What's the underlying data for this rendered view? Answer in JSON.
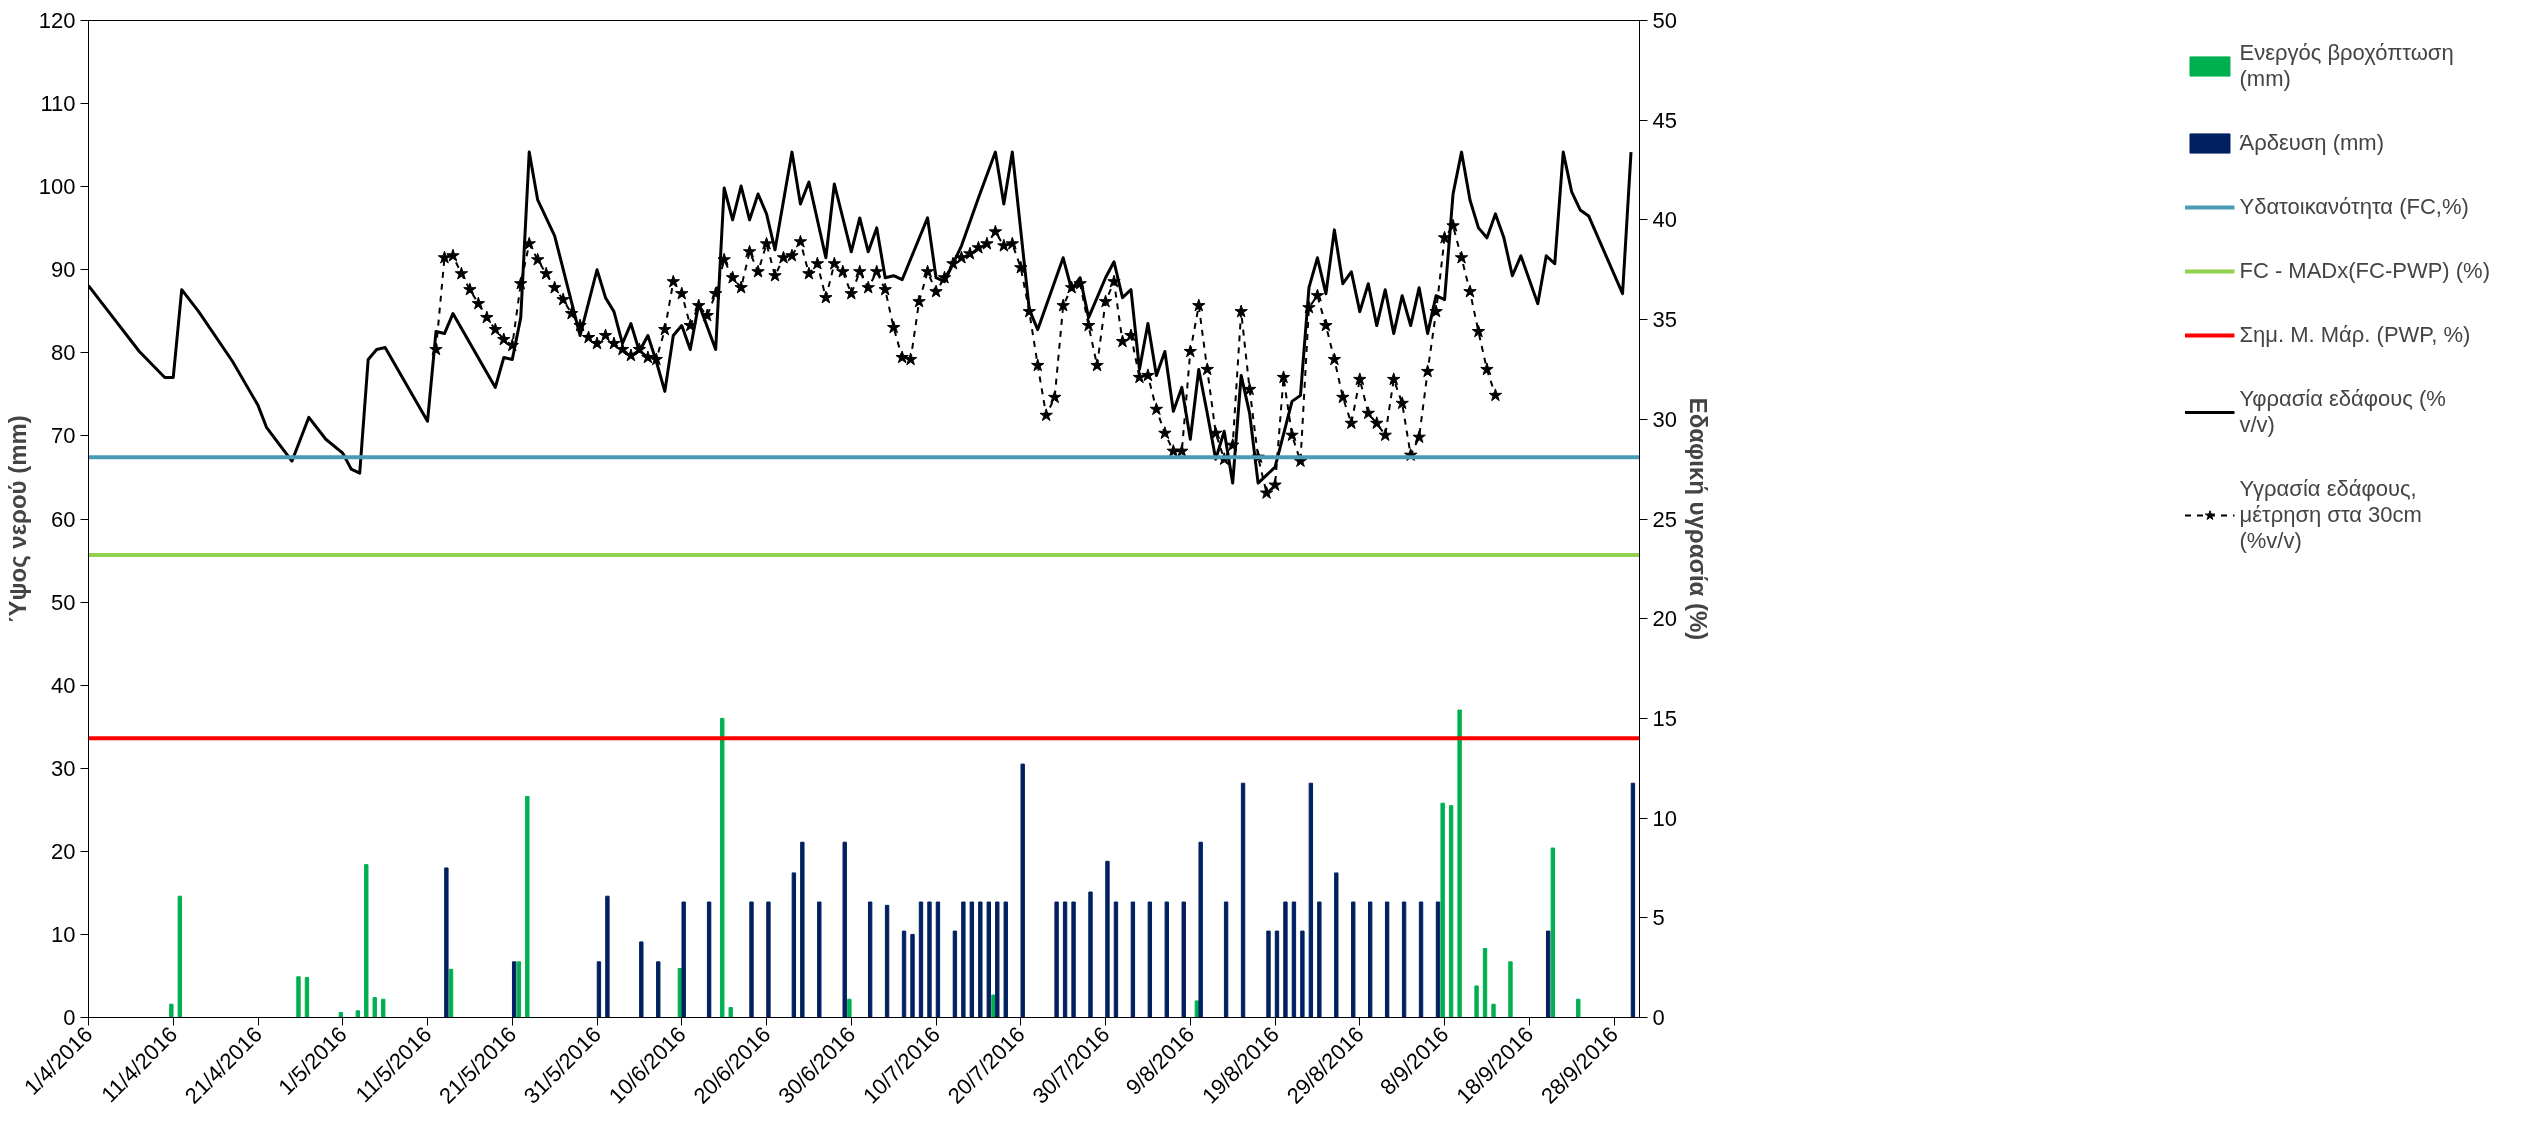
{
  "chart_data": {
    "type": "bar",
    "ylabel": "Ύψος νερού (mm)",
    "y2label": "Εδαφική υγρασία (%)",
    "xlim": [
      "2016-04-01",
      "2016-10-01"
    ],
    "xticks": [
      {
        "value": "2016-04-01",
        "label": "1/4/2016"
      },
      {
        "value": "2016-04-11",
        "label": "11/4/2016"
      },
      {
        "value": "2016-04-21",
        "label": "21/4/2016"
      },
      {
        "value": "2016-05-01",
        "label": "1/5/2016"
      },
      {
        "value": "2016-05-11",
        "label": "11/5/2016"
      },
      {
        "value": "2016-05-21",
        "label": "21/5/2016"
      },
      {
        "value": "2016-05-31",
        "label": "31/5/2016"
      },
      {
        "value": "2016-06-10",
        "label": "10/6/2016"
      },
      {
        "value": "2016-06-20",
        "label": "20/6/2016"
      },
      {
        "value": "2016-06-30",
        "label": "30/6/2016"
      },
      {
        "value": "2016-07-10",
        "label": "10/7/2016"
      },
      {
        "value": "2016-07-20",
        "label": "20/7/2016"
      },
      {
        "value": "2016-07-30",
        "label": "30/7/2016"
      },
      {
        "value": "2016-08-09",
        "label": "9/8/2016"
      },
      {
        "value": "2016-08-19",
        "label": "19/8/2016"
      },
      {
        "value": "2016-08-29",
        "label": "29/8/2016"
      },
      {
        "value": "2016-09-08",
        "label": "8/9/2016"
      },
      {
        "value": "2016-09-18",
        "label": "18/9/2016"
      },
      {
        "value": "2016-09-28",
        "label": "28/9/2016"
      }
    ],
    "ylim": [
      0,
      120
    ],
    "yticks": [
      0,
      10,
      20,
      30,
      40,
      50,
      60,
      70,
      80,
      90,
      100,
      110,
      120
    ],
    "y2lim": [
      0,
      50
    ],
    "y2ticks": [
      0,
      5,
      10,
      15,
      20,
      25,
      30,
      35,
      40,
      45,
      50
    ],
    "grid": false,
    "legend": "right",
    "series": [
      {
        "name": "Ενεργός βροχόπτωση (mm)",
        "color": "#00b050",
        "x": [
          "2016-04-11",
          "2016-04-12",
          "2016-04-26",
          "2016-04-27",
          "2016-05-01",
          "2016-05-03",
          "2016-05-04",
          "2016-05-05",
          "2016-05-06",
          "2016-05-14",
          "2016-05-22",
          "2016-05-23",
          "2016-06-10",
          "2016-06-15",
          "2016-06-16",
          "2016-06-30",
          "2016-07-17",
          "2016-08-10",
          "2016-09-08",
          "2016-09-09",
          "2016-09-10",
          "2016-09-12",
          "2016-09-13",
          "2016-09-14",
          "2016-09-16",
          "2016-09-21",
          "2016-09-24"
        ],
        "values": [
          1.6,
          14.6,
          4.9,
          4.8,
          0.6,
          0.8,
          18.4,
          2.4,
          2.2,
          5.8,
          6.7,
          26.6,
          5.9,
          36.0,
          1.2,
          2.2,
          2.7,
          2.0,
          25.8,
          25.5,
          37.0,
          3.8,
          8.3,
          1.6,
          6.7,
          20.4,
          2.2
        ]
      },
      {
        "name": "Άρδευση (mm)",
        "color": "#002060",
        "x": [
          "2016-05-13",
          "2016-05-21",
          "2016-05-31",
          "2016-06-01",
          "2016-06-05",
          "2016-06-07",
          "2016-06-10",
          "2016-06-13",
          "2016-06-18",
          "2016-06-20",
          "2016-06-23",
          "2016-06-24",
          "2016-06-26",
          "2016-06-29",
          "2016-07-02",
          "2016-07-04",
          "2016-07-06",
          "2016-07-07",
          "2016-07-08",
          "2016-07-09",
          "2016-07-10",
          "2016-07-12",
          "2016-07-13",
          "2016-07-14",
          "2016-07-15",
          "2016-07-16",
          "2016-07-17",
          "2016-07-18",
          "2016-07-20",
          "2016-07-24",
          "2016-07-25",
          "2016-07-26",
          "2016-07-28",
          "2016-07-30",
          "2016-07-31",
          "2016-08-02",
          "2016-08-04",
          "2016-08-06",
          "2016-08-08",
          "2016-08-10",
          "2016-08-13",
          "2016-08-15",
          "2016-08-18",
          "2016-08-19",
          "2016-08-20",
          "2016-08-21",
          "2016-08-22",
          "2016-08-23",
          "2016-08-24",
          "2016-08-26",
          "2016-08-28",
          "2016-08-30",
          "2016-09-01",
          "2016-09-03",
          "2016-09-05",
          "2016-09-07",
          "2016-09-20",
          "2016-09-30"
        ],
        "values": [
          18.0,
          6.7,
          6.7,
          14.6,
          9.1,
          6.7,
          13.9,
          13.9,
          13.9,
          13.9,
          17.4,
          21.1,
          13.9,
          21.1,
          13.9,
          13.5,
          10.4,
          10.0,
          13.9,
          13.9,
          13.9,
          10.4,
          13.9,
          13.9,
          13.9,
          13.9,
          13.9,
          13.9,
          30.5,
          13.9,
          13.9,
          13.9,
          15.1,
          18.8,
          13.9,
          13.9,
          13.9,
          13.9,
          13.9,
          21.1,
          13.9,
          28.2,
          10.4,
          10.4,
          13.9,
          13.9,
          10.4,
          28.2,
          13.9,
          17.4,
          13.9,
          13.9,
          13.9,
          13.9,
          13.9,
          13.9,
          10.4,
          28.2
        ]
      },
      {
        "name": "Υφρασία εδάφους (% v/v)",
        "type": "line",
        "axis": "y2",
        "color": "#000000",
        "line_style": "solid",
        "x": [
          "2016-04-01",
          "2016-04-03",
          "2016-04-07",
          "2016-04-10",
          "2016-04-11",
          "2016-04-12",
          "2016-04-14",
          "2016-04-18",
          "2016-04-21",
          "2016-04-22",
          "2016-04-25",
          "2016-04-27",
          "2016-04-29",
          "2016-05-01",
          "2016-05-02",
          "2016-05-03",
          "2016-05-04",
          "2016-05-05",
          "2016-05-06",
          "2016-05-11",
          "2016-05-12",
          "2016-05-13",
          "2016-05-14",
          "2016-05-19",
          "2016-05-20",
          "2016-05-21",
          "2016-05-22",
          "2016-05-23",
          "2016-05-24",
          "2016-05-26",
          "2016-05-29",
          "2016-05-31",
          "2016-06-01",
          "2016-06-02",
          "2016-06-03",
          "2016-06-04",
          "2016-06-05",
          "2016-06-06",
          "2016-06-07",
          "2016-06-08",
          "2016-06-09",
          "2016-06-10",
          "2016-06-11",
          "2016-06-12",
          "2016-06-14",
          "2016-06-15",
          "2016-06-16",
          "2016-06-17",
          "2016-06-18",
          "2016-06-19",
          "2016-06-20",
          "2016-06-21",
          "2016-06-23",
          "2016-06-24",
          "2016-06-25",
          "2016-06-27",
          "2016-06-28",
          "2016-06-30",
          "2016-07-01",
          "2016-07-02",
          "2016-07-03",
          "2016-07-04",
          "2016-07-05",
          "2016-07-06",
          "2016-07-09",
          "2016-07-10",
          "2016-07-11",
          "2016-07-13",
          "2016-07-15",
          "2016-07-17",
          "2016-07-18",
          "2016-07-19",
          "2016-07-21",
          "2016-07-22",
          "2016-07-25",
          "2016-07-26",
          "2016-07-27",
          "2016-07-28",
          "2016-07-30",
          "2016-07-31",
          "2016-08-01",
          "2016-08-02",
          "2016-08-03",
          "2016-08-04",
          "2016-08-05",
          "2016-08-06",
          "2016-08-07",
          "2016-08-08",
          "2016-08-09",
          "2016-08-10",
          "2016-08-11",
          "2016-08-12",
          "2016-08-13",
          "2016-08-14",
          "2016-08-15",
          "2016-08-16",
          "2016-08-17",
          "2016-08-18",
          "2016-08-19",
          "2016-08-21",
          "2016-08-22",
          "2016-08-23",
          "2016-08-24",
          "2016-08-25",
          "2016-08-26",
          "2016-08-27",
          "2016-08-28",
          "2016-08-29",
          "2016-08-30",
          "2016-08-31",
          "2016-09-01",
          "2016-09-02",
          "2016-09-03",
          "2016-09-04",
          "2016-09-05",
          "2016-09-06",
          "2016-09-07",
          "2016-09-08",
          "2016-09-09",
          "2016-09-10",
          "2016-09-11",
          "2016-09-12",
          "2016-09-13",
          "2016-09-14",
          "2016-09-15",
          "2016-09-16",
          "2016-09-17",
          "2016-09-19",
          "2016-09-20",
          "2016-09-21",
          "2016-09-22",
          "2016-09-23",
          "2016-09-24",
          "2016-09-25",
          "2016-09-29",
          "2016-09-30"
        ],
        "values": [
          36.7,
          35.6,
          33.4,
          32.1,
          32.1,
          36.5,
          35.4,
          32.9,
          30.7,
          29.6,
          27.9,
          30.1,
          29.0,
          28.3,
          27.5,
          27.3,
          33.0,
          33.5,
          33.6,
          29.9,
          34.4,
          34.3,
          35.3,
          31.6,
          33.1,
          33.0,
          35.1,
          43.4,
          41.0,
          39.2,
          34.2,
          37.5,
          36.1,
          35.4,
          33.8,
          34.8,
          33.4,
          34.2,
          32.9,
          31.4,
          34.2,
          34.7,
          33.5,
          35.8,
          33.5,
          41.6,
          40.0,
          41.7,
          40.0,
          41.3,
          40.3,
          38.5,
          43.4,
          40.8,
          41.9,
          38.1,
          41.8,
          38.4,
          40.1,
          38.4,
          39.6,
          37.1,
          37.2,
          37.0,
          40.1,
          37.1,
          36.9,
          38.7,
          41.1,
          43.4,
          40.8,
          43.4,
          35.5,
          34.5,
          38.1,
          36.5,
          37.1,
          35.1,
          37.1,
          37.9,
          36.1,
          36.5,
          32.5,
          34.8,
          32.2,
          33.4,
          30.4,
          31.6,
          29.0,
          32.5,
          30.3,
          28.0,
          29.4,
          26.8,
          32.2,
          30.3,
          26.8,
          27.2,
          27.6,
          30.9,
          31.2,
          36.6,
          38.1,
          36.3,
          39.5,
          36.8,
          37.4,
          35.4,
          36.8,
          34.7,
          36.5,
          34.3,
          36.2,
          34.7,
          36.6,
          34.3,
          36.2,
          36.0,
          41.3,
          43.4,
          41.0,
          39.6,
          39.1,
          40.3,
          39.1,
          37.2,
          38.2,
          35.8,
          38.2,
          37.8,
          43.4,
          41.4,
          40.5,
          40.2,
          36.3,
          43.4
        ]
      },
      {
        "name": "Υγρασία εδάφους, μέτρηση στα 30cm (%v/v)",
        "type": "line",
        "axis": "y2",
        "color": "#000000",
        "line_style": "dashed",
        "marker": "star",
        "x": [
          "2016-05-12",
          "2016-05-13",
          "2016-05-14",
          "2016-05-15",
          "2016-05-16",
          "2016-05-17",
          "2016-05-18",
          "2016-05-19",
          "2016-05-20",
          "2016-05-21",
          "2016-05-22",
          "2016-05-23",
          "2016-05-24",
          "2016-05-25",
          "2016-05-26",
          "2016-05-27",
          "2016-05-28",
          "2016-05-29",
          "2016-05-30",
          "2016-05-31",
          "2016-06-01",
          "2016-06-02",
          "2016-06-03",
          "2016-06-04",
          "2016-06-05",
          "2016-06-06",
          "2016-06-07",
          "2016-06-08",
          "2016-06-09",
          "2016-06-10",
          "2016-06-11",
          "2016-06-12",
          "2016-06-13",
          "2016-06-14",
          "2016-06-15",
          "2016-06-16",
          "2016-06-17",
          "2016-06-18",
          "2016-06-19",
          "2016-06-20",
          "2016-06-21",
          "2016-06-22",
          "2016-06-23",
          "2016-06-24",
          "2016-06-25",
          "2016-06-26",
          "2016-06-27",
          "2016-06-28",
          "2016-06-29",
          "2016-06-30",
          "2016-07-01",
          "2016-07-02",
          "2016-07-03",
          "2016-07-04",
          "2016-07-05",
          "2016-07-06",
          "2016-07-07",
          "2016-07-08",
          "2016-07-09",
          "2016-07-10",
          "2016-07-11",
          "2016-07-12",
          "2016-07-13",
          "2016-07-14",
          "2016-07-15",
          "2016-07-16",
          "2016-07-17",
          "2016-07-18",
          "2016-07-19",
          "2016-07-20",
          "2016-07-21",
          "2016-07-22",
          "2016-07-23",
          "2016-07-24",
          "2016-07-25",
          "2016-07-26",
          "2016-07-27",
          "2016-07-28",
          "2016-07-29",
          "2016-07-30",
          "2016-07-31",
          "2016-08-01",
          "2016-08-02",
          "2016-08-03",
          "2016-08-04",
          "2016-08-05",
          "2016-08-06",
          "2016-08-07",
          "2016-08-08",
          "2016-08-09",
          "2016-08-10",
          "2016-08-11",
          "2016-08-12",
          "2016-08-13",
          "2016-08-14",
          "2016-08-15",
          "2016-08-16",
          "2016-08-17",
          "2016-08-18",
          "2016-08-19",
          "2016-08-20",
          "2016-08-21",
          "2016-08-22",
          "2016-08-23",
          "2016-08-24",
          "2016-08-25",
          "2016-08-26",
          "2016-08-27",
          "2016-08-28",
          "2016-08-29",
          "2016-08-30",
          "2016-08-31",
          "2016-09-01",
          "2016-09-02",
          "2016-09-03",
          "2016-09-04",
          "2016-09-05",
          "2016-09-06",
          "2016-09-07",
          "2016-09-08",
          "2016-09-09",
          "2016-09-10",
          "2016-09-11",
          "2016-09-12",
          "2016-09-13",
          "2016-09-14"
        ],
        "values": [
          33.5,
          38.1,
          38.2,
          37.3,
          36.5,
          35.8,
          35.1,
          34.5,
          34.0,
          33.7,
          36.8,
          38.8,
          38.0,
          37.3,
          36.6,
          36.0,
          35.3,
          34.7,
          34.1,
          33.8,
          34.2,
          33.8,
          33.5,
          33.2,
          33.5,
          33.1,
          33.0,
          34.5,
          36.9,
          36.3,
          34.7,
          35.7,
          35.2,
          36.3,
          38.0,
          37.1,
          36.6,
          38.4,
          37.4,
          38.8,
          37.2,
          38.1,
          38.2,
          38.9,
          37.3,
          37.8,
          36.1,
          37.8,
          37.4,
          36.3,
          37.4,
          36.6,
          37.4,
          36.5,
          34.6,
          33.1,
          33.0,
          35.9,
          37.4,
          36.4,
          37.1,
          37.8,
          38.1,
          38.3,
          38.6,
          38.8,
          39.4,
          38.7,
          38.8,
          37.6,
          35.4,
          32.7,
          30.2,
          31.1,
          35.7,
          36.6,
          36.8,
          34.7,
          32.7,
          35.9,
          36.9,
          33.9,
          34.2,
          32.1,
          32.2,
          30.5,
          29.3,
          28.4,
          28.4,
          33.4,
          35.7,
          32.5,
          29.3,
          28.0,
          28.7,
          35.4,
          31.5,
          28.1,
          26.3,
          26.7,
          32.1,
          29.2,
          27.9,
          35.6,
          36.2,
          34.7,
          33.0,
          31.1,
          29.8,
          32.0,
          30.3,
          29.8,
          29.2,
          32.0,
          30.8,
          28.2,
          29.1,
          32.4,
          35.4,
          39.1,
          39.7,
          38.1,
          36.4,
          34.4,
          32.5,
          31.2
        ]
      }
    ],
    "ref_lines": [
      {
        "axis": "y2",
        "value": 28.1,
        "label": "Υδατοικανότητα (FC,%)",
        "color": "#4a9bb5"
      },
      {
        "axis": "y2",
        "value": 23.2,
        "label": "FC - MADx(FC-PWP) (%)",
        "color": "#92d050"
      },
      {
        "axis": "y2",
        "value": 14.0,
        "label": "Σημ. Μ. Μάρ. (PWP, %)",
        "color": "#ff0000"
      }
    ]
  }
}
